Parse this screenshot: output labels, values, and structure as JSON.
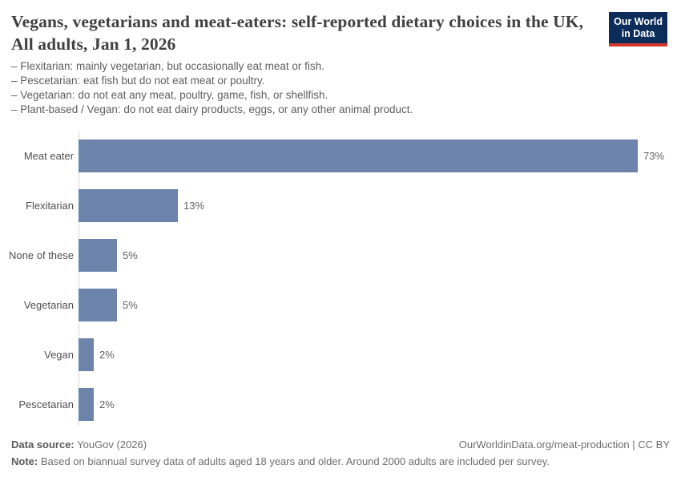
{
  "header": {
    "title": "Vegans, vegetarians and meat-eaters: self-reported dietary choices in the UK, All adults, Jan 1, 2026",
    "logo_line1": "Our World",
    "logo_line2": "in Data",
    "definitions": [
      "– Flexitarian: mainly vegetarian, but occasionally eat meat or fish.",
      "– Pescetarian: eat fish but do not eat meat or poultry.",
      "– Vegetarian: do not eat any meat, poultry, game, fish, or shellfish.",
      "– Plant-based / Vegan: do not eat dairy products, eggs, or any other animal product."
    ]
  },
  "chart_data": {
    "type": "bar",
    "orientation": "horizontal",
    "title": "Vegans, vegetarians and meat-eaters: self-reported dietary choices in the UK, All adults, Jan 1, 2026",
    "categories": [
      "Meat eater",
      "Flexitarian",
      "None of these",
      "Vegetarian",
      "Vegan",
      "Pescetarian"
    ],
    "values": [
      73,
      13,
      5,
      5,
      2,
      2
    ],
    "value_labels": [
      "73%",
      "13%",
      "5%",
      "5%",
      "2%",
      "2%"
    ],
    "unit": "%",
    "xlim": [
      0,
      76
    ],
    "grid": false,
    "legend": "none",
    "bar_color": "#6c84ac",
    "axis_line_color": "#d6d6d6"
  },
  "footer": {
    "source_label": "Data source:",
    "source_value": " YouGov (2026)",
    "attribution": "OurWorldinData.org/meat-production | CC BY",
    "note_label": "Note:",
    "note_value": " Based on biannual survey data of adults aged 18 years and older. Around 2000 adults are included per survey."
  },
  "colors": {
    "bar": "#6c84ac",
    "logo_navy": "#0c2d5a",
    "logo_red": "#d2372c",
    "title_text": "#404040",
    "body_text": "#5e5e5e"
  }
}
